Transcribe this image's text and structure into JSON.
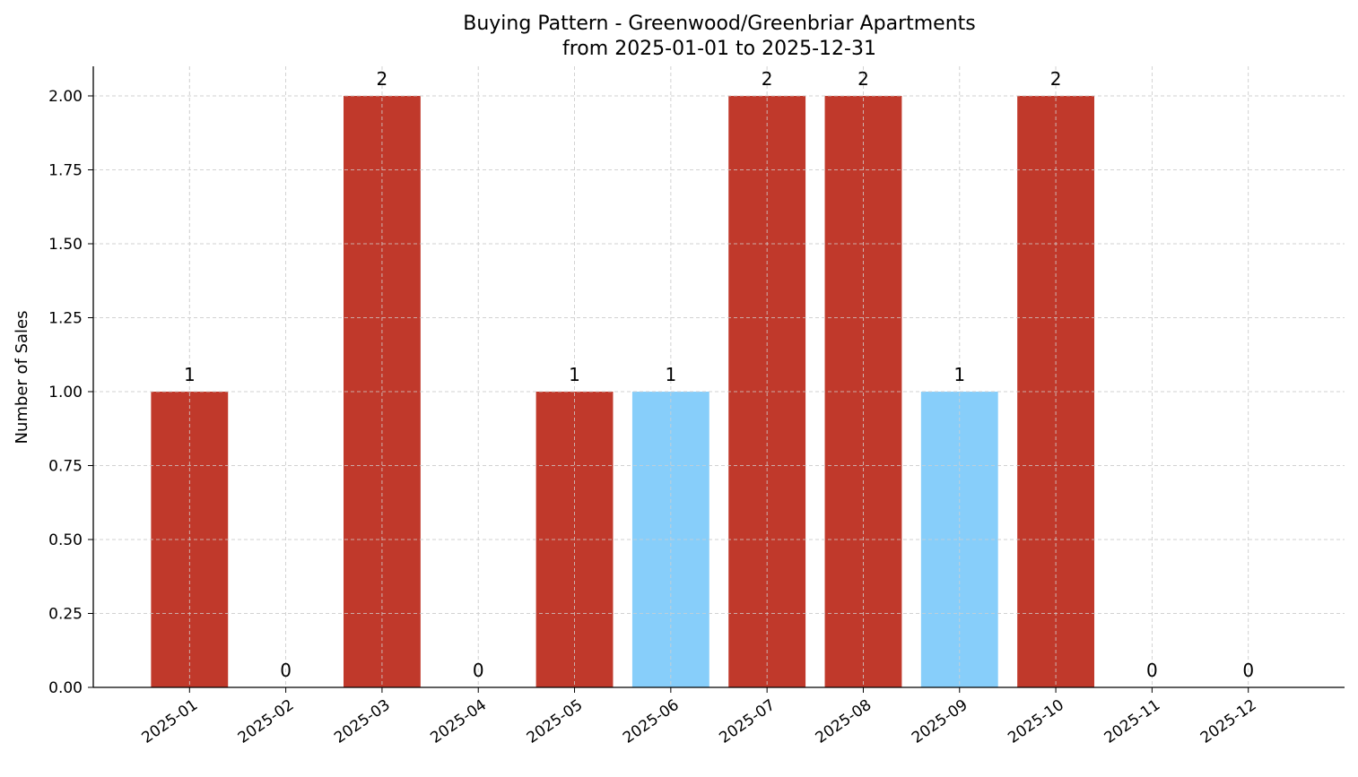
{
  "chart_data": {
    "type": "bar",
    "title": "Buying Pattern - Greenwood/Greenbriar Apartments",
    "subtitle": "from 2025-01-01 to 2025-12-31",
    "xlabel": "",
    "ylabel": "Number of Sales",
    "categories": [
      "2025-01",
      "2025-02",
      "2025-03",
      "2025-04",
      "2025-05",
      "2025-06",
      "2025-07",
      "2025-08",
      "2025-09",
      "2025-10",
      "2025-11",
      "2025-12"
    ],
    "values": [
      1,
      0,
      2,
      0,
      1,
      1,
      2,
      2,
      1,
      2,
      0,
      0
    ],
    "bar_colors": [
      "#c0392b",
      "#c0392b",
      "#c0392b",
      "#c0392b",
      "#c0392b",
      "#87cefa",
      "#c0392b",
      "#c0392b",
      "#87cefa",
      "#c0392b",
      "#c0392b",
      "#c0392b"
    ],
    "data_labels": [
      "1",
      "0",
      "2",
      "0",
      "1",
      "1",
      "2",
      "2",
      "1",
      "2",
      "0",
      "0"
    ],
    "ylim": [
      0,
      2.1
    ],
    "yticks": [
      0,
      0.25,
      0.5,
      0.75,
      1.0,
      1.25,
      1.5,
      1.75,
      2.0
    ],
    "ytick_labels": [
      "0.00",
      "0.25",
      "0.50",
      "0.75",
      "1.00",
      "1.25",
      "1.50",
      "1.75",
      "2.00"
    ],
    "grid": true,
    "legend": "none"
  }
}
